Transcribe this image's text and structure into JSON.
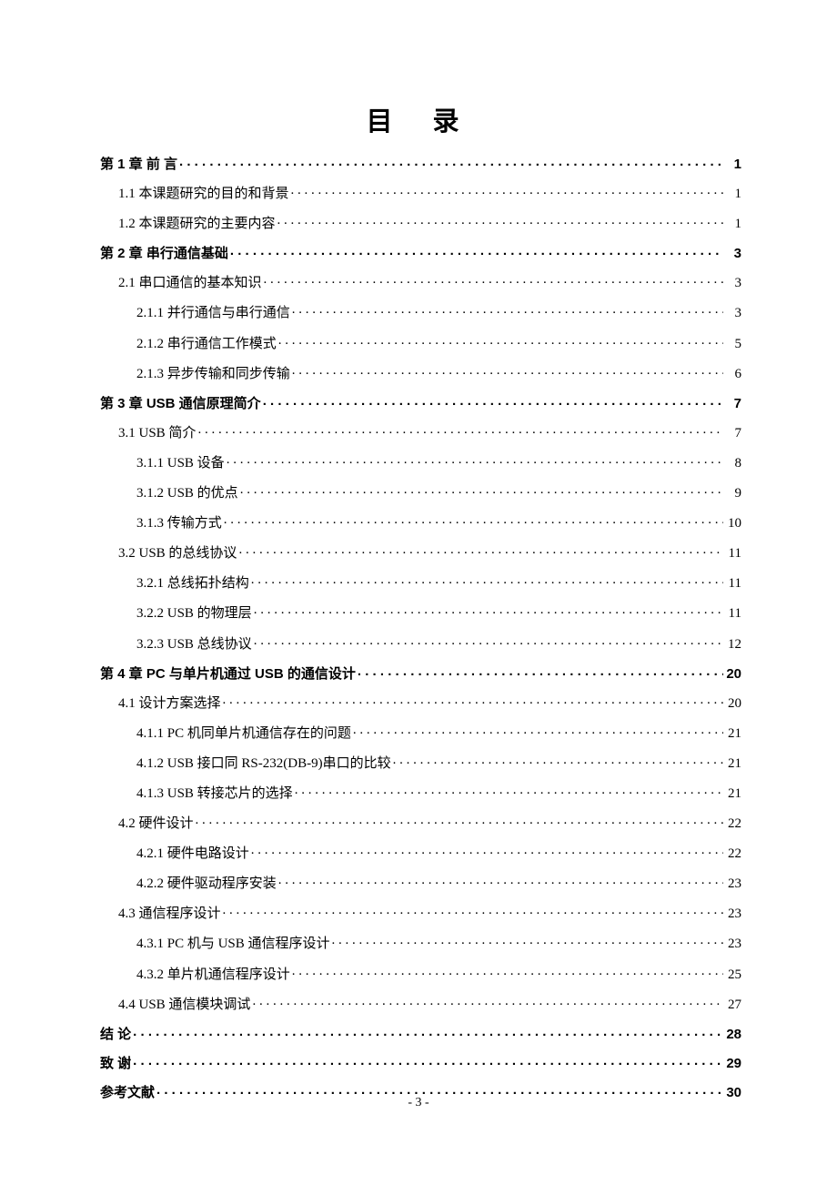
{
  "title": "目 录",
  "page_footer": "- 3 -",
  "background_color": "#ffffff",
  "text_color": "#000000",
  "title_fontsize": 29,
  "body_fontsize": 15,
  "toc_entries": [
    {
      "level": 0,
      "label": "第 1 章 前 言",
      "page": "1"
    },
    {
      "level": 1,
      "label": "1.1 本课题研究的目的和背景",
      "page": "1"
    },
    {
      "level": 1,
      "label": "1.2 本课题研究的主要内容",
      "page": "1"
    },
    {
      "level": 0,
      "label": "第 2 章 串行通信基础",
      "page": "3"
    },
    {
      "level": 1,
      "label": "2.1 串口通信的基本知识",
      "page": "3"
    },
    {
      "level": 2,
      "label": "2.1.1 并行通信与串行通信",
      "page": "3"
    },
    {
      "level": 2,
      "label": "2.1.2 串行通信工作模式",
      "page": "5"
    },
    {
      "level": 2,
      "label": "2.1.3 异步传输和同步传输",
      "page": "6"
    },
    {
      "level": 0,
      "label": "第 3 章 USB 通信原理简介",
      "page": "7"
    },
    {
      "level": 1,
      "label": "3.1 USB 简介",
      "page": "7"
    },
    {
      "level": 2,
      "label": "3.1.1 USB 设备",
      "page": "8"
    },
    {
      "level": 2,
      "label": "3.1.2 USB 的优点",
      "page": "9"
    },
    {
      "level": 2,
      "label": "3.1.3 传输方式",
      "page": "10"
    },
    {
      "level": 1,
      "label": "3.2 USB 的总线协议",
      "page": "11"
    },
    {
      "level": 2,
      "label": "3.2.1 总线拓扑结构",
      "page": "11"
    },
    {
      "level": 2,
      "label": "3.2.2 USB 的物理层",
      "page": "11"
    },
    {
      "level": 2,
      "label": "3.2.3 USB 总线协议",
      "page": "12"
    },
    {
      "level": 0,
      "label": "第 4 章 PC 与单片机通过 USB 的通信设计",
      "page": "20"
    },
    {
      "level": 1,
      "label": "4.1 设计方案选择",
      "page": "20"
    },
    {
      "level": 2,
      "label": "4.1.1 PC 机同单片机通信存在的问题",
      "page": "21"
    },
    {
      "level": 2,
      "label": "4.1.2 USB 接口同 RS-232(DB-9)串口的比较",
      "page": "21"
    },
    {
      "level": 2,
      "label": "4.1.3 USB 转接芯片的选择",
      "page": "21"
    },
    {
      "level": 1,
      "label": "4.2 硬件设计",
      "page": "22"
    },
    {
      "level": 2,
      "label": "4.2.1 硬件电路设计",
      "page": "22"
    },
    {
      "level": 2,
      "label": "4.2.2 硬件驱动程序安装",
      "page": "23"
    },
    {
      "level": 1,
      "label": "4.3 通信程序设计",
      "page": "23"
    },
    {
      "level": 2,
      "label": "4.3.1 PC 机与 USB 通信程序设计",
      "page": "23"
    },
    {
      "level": 2,
      "label": "4.3.2 单片机通信程序设计",
      "page": "25"
    },
    {
      "level": 1,
      "label": "4.4 USB 通信模块调试",
      "page": "27"
    },
    {
      "level": 0,
      "label": "结 论",
      "page": "28"
    },
    {
      "level": 0,
      "label": "致 谢",
      "page": "29"
    },
    {
      "level": 0,
      "label": "参考文献",
      "page": "30"
    }
  ]
}
